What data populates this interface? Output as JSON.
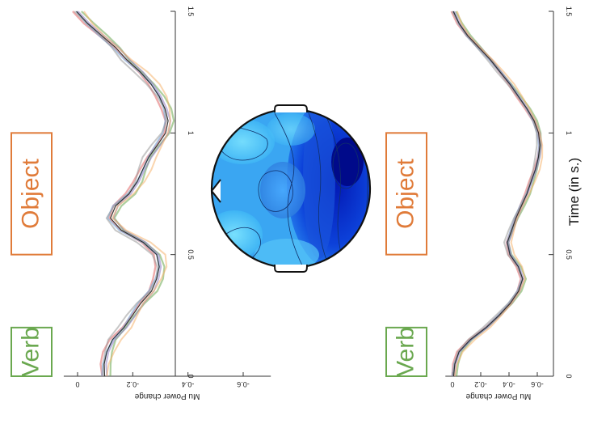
{
  "chart_data": [
    {
      "type": "line",
      "panel": "left",
      "orientation": "rotated-90",
      "x_axis": {
        "label": "",
        "range": [
          0,
          1.5
        ],
        "ticks": [
          "0",
          "0.5",
          "1",
          "1.5"
        ]
      },
      "y_axis": {
        "label": "Mu Power change",
        "range": [
          -0.7,
          0.05
        ],
        "ticks": [
          "0",
          "-0.2",
          "-0.4",
          "-0.6"
        ]
      },
      "curve": {
        "t": [
          0,
          0.05,
          0.1,
          0.15,
          0.2,
          0.25,
          0.3,
          0.35,
          0.4,
          0.45,
          0.5,
          0.55,
          0.6,
          0.65,
          0.7,
          0.75,
          0.8,
          0.85,
          0.9,
          0.95,
          1.0,
          1.05,
          1.1,
          1.15,
          1.2,
          1.25,
          1.3,
          1.35,
          1.4,
          1.45,
          1.5
        ],
        "v": [
          -0.1,
          -0.1,
          -0.11,
          -0.13,
          -0.17,
          -0.2,
          -0.23,
          -0.27,
          -0.29,
          -0.3,
          -0.29,
          -0.24,
          -0.16,
          -0.12,
          -0.14,
          -0.19,
          -0.22,
          -0.24,
          -0.26,
          -0.29,
          -0.32,
          -0.33,
          -0.32,
          -0.3,
          -0.27,
          -0.23,
          -0.18,
          -0.14,
          -0.09,
          -0.04,
          0.0
        ]
      },
      "boxes": [
        {
          "label": "Verb",
          "t0": 0.0,
          "t1": 0.2,
          "color": "#6aa84f"
        },
        {
          "label": "Object",
          "t0": 0.5,
          "t1": 1.0,
          "color": "#e07b39"
        }
      ]
    },
    {
      "type": "line",
      "panel": "right",
      "orientation": "rotated-90",
      "x_axis": {
        "label": "Time (in s.)",
        "range": [
          0,
          1.5
        ],
        "ticks": [
          "0",
          "0.5",
          "1",
          "1.5"
        ]
      },
      "y_axis": {
        "label": "Mu Power change",
        "range": [
          -0.7,
          0.05
        ],
        "ticks": [
          "0",
          "-0.2",
          "-0.4",
          "-0.6"
        ]
      },
      "curve": {
        "t": [
          0,
          0.05,
          0.1,
          0.15,
          0.2,
          0.25,
          0.3,
          0.35,
          0.4,
          0.45,
          0.5,
          0.55,
          0.6,
          0.65,
          0.7,
          0.75,
          0.8,
          0.85,
          0.9,
          0.95,
          1.0,
          1.05,
          1.1,
          1.15,
          1.2,
          1.25,
          1.3,
          1.35,
          1.4,
          1.45,
          1.5
        ],
        "v": [
          -0.01,
          -0.02,
          -0.05,
          -0.13,
          -0.24,
          -0.33,
          -0.41,
          -0.47,
          -0.5,
          -0.47,
          -0.41,
          -0.39,
          -0.42,
          -0.45,
          -0.49,
          -0.53,
          -0.56,
          -0.59,
          -0.61,
          -0.62,
          -0.61,
          -0.58,
          -0.53,
          -0.47,
          -0.41,
          -0.34,
          -0.27,
          -0.19,
          -0.11,
          -0.05,
          -0.01
        ]
      },
      "boxes": [
        {
          "label": "Verb",
          "t0": 0.0,
          "t1": 0.2,
          "color": "#6aa84f"
        },
        {
          "label": "Object",
          "t0": 0.5,
          "t1": 1.0,
          "color": "#e07b39"
        }
      ]
    }
  ],
  "colors": {
    "verb": "#6aa84f",
    "object": "#e07b39",
    "series": [
      "#e06666",
      "#6aa84f",
      "#6fa8dc",
      "#8e7cc3",
      "#999999",
      "#f6b26b",
      "#222222"
    ]
  },
  "topomap": {
    "description_icon": "head-topomap-icon"
  }
}
